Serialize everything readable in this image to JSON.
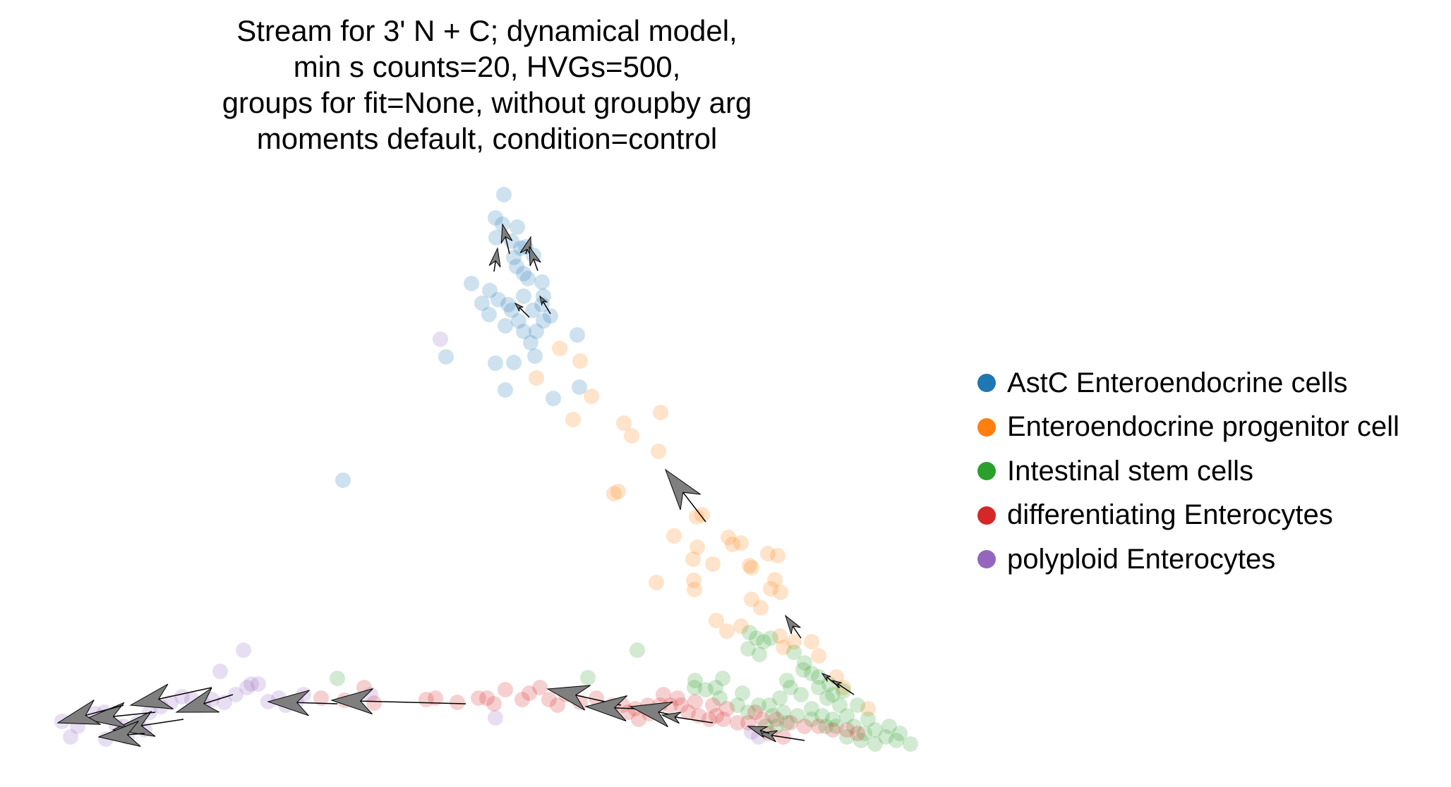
{
  "chart_data": {
    "type": "scatter",
    "title_lines": [
      "Stream for 3' N + C; dynamical model,",
      "min s counts=20, HVGs=500,",
      "groups for fit=None, without groupby arg",
      "moments default, condition=control"
    ],
    "xlabel": "",
    "ylabel": "",
    "axes_visible": false,
    "grid": false,
    "legend_position": "right",
    "series": [
      {
        "name": "AstC Enteroendocrine cells",
        "color": "#1f77b4",
        "points": [
          [
            714,
            276
          ],
          [
            702,
            309
          ],
          [
            712,
            318
          ],
          [
            733,
            322
          ],
          [
            703,
            337
          ],
          [
            725,
            342
          ],
          [
            738,
            352
          ],
          [
            756,
            362
          ],
          [
            668,
            402
          ],
          [
            694,
            412
          ],
          [
            706,
            425
          ],
          [
            683,
            430
          ],
          [
            720,
            432
          ],
          [
            693,
            446
          ],
          [
            716,
            462
          ],
          [
            742,
            470
          ],
          [
            768,
            432
          ],
          [
            752,
            486
          ],
          [
            702,
            515
          ],
          [
            728,
            514
          ],
          [
            758,
            505
          ],
          [
            818,
            475
          ],
          [
            784,
            565
          ],
          [
            716,
            553
          ],
          [
            821,
            549
          ],
          [
            486,
            681
          ],
          [
            632,
            506
          ],
          [
            732,
            378
          ],
          [
            748,
            395
          ],
          [
            742,
            420
          ],
          [
            755,
            440
          ],
          [
            770,
            455
          ],
          [
            760,
            470
          ],
          [
            735,
            455
          ],
          [
            725,
            440
          ],
          [
            745,
            350
          ],
          [
            728,
            365
          ],
          [
            742,
            388
          ],
          [
            770,
            420
          ],
          [
            780,
            448
          ],
          [
            768,
            400
          ]
        ]
      },
      {
        "name": "Enteroendocrine progenitor cell",
        "color": "#ff7f0e",
        "points": [
          [
            793,
            494
          ],
          [
            822,
            512
          ],
          [
            760,
            536
          ],
          [
            838,
            562
          ],
          [
            936,
            585
          ],
          [
            884,
            600
          ],
          [
            812,
            595
          ],
          [
            895,
            618
          ],
          [
            933,
            640
          ],
          [
            870,
            700
          ],
          [
            876,
            697
          ],
          [
            995,
            730
          ],
          [
            987,
            733
          ],
          [
            955,
            760
          ],
          [
            1032,
            762
          ],
          [
            1038,
            772
          ],
          [
            1050,
            770
          ],
          [
            988,
            776
          ],
          [
            982,
            793
          ],
          [
            1010,
            800
          ],
          [
            1065,
            805
          ],
          [
            1088,
            785
          ],
          [
            1102,
            788
          ],
          [
            1062,
            802
          ],
          [
            1098,
            822
          ],
          [
            930,
            826
          ],
          [
            983,
            823
          ],
          [
            1106,
            840
          ],
          [
            1092,
            835
          ],
          [
            984,
            836
          ],
          [
            1065,
            850
          ],
          [
            1078,
            862
          ],
          [
            1015,
            880
          ],
          [
            1050,
            888
          ],
          [
            1030,
            895
          ],
          [
            1105,
            902
          ],
          [
            1110,
            918
          ],
          [
            1125,
            910
          ],
          [
            1150,
            910
          ],
          [
            1160,
            930
          ],
          [
            1185,
            960
          ],
          [
            1195,
            975
          ],
          [
            1230,
            1005
          ]
        ]
      },
      {
        "name": "Intestinal stem cells",
        "color": "#2ca02c",
        "points": [
          [
            903,
            922
          ],
          [
            1062,
            897
          ],
          [
            1072,
            905
          ],
          [
            1082,
            910
          ],
          [
            1092,
            905
          ],
          [
            1060,
            920
          ],
          [
            1076,
            928
          ],
          [
            985,
            965
          ],
          [
            1024,
            962
          ],
          [
            1014,
            975
          ],
          [
            984,
            975
          ],
          [
            1052,
            983
          ],
          [
            1115,
            965
          ],
          [
            1120,
            975
          ],
          [
            1138,
            950
          ],
          [
            1150,
            955
          ],
          [
            1160,
            975
          ],
          [
            1172,
            990
          ],
          [
            1180,
            985
          ],
          [
            1190,
            1000
          ],
          [
            1090,
            1000
          ],
          [
            1105,
            990
          ],
          [
            1135,
            985
          ],
          [
            1150,
            1005
          ],
          [
            1165,
            1015
          ],
          [
            1180,
            1020
          ],
          [
            1200,
            1015
          ],
          [
            1210,
            1030
          ],
          [
            1225,
            1040
          ],
          [
            1240,
            1035
          ],
          [
            1255,
            1045
          ],
          [
            1270,
            1050
          ],
          [
            1240,
            1055
          ],
          [
            1220,
            1050
          ],
          [
            1200,
            1045
          ],
          [
            1185,
            1030
          ],
          [
            1170,
            1030
          ],
          [
            1150,
            1020
          ],
          [
            1130,
            1015
          ],
          [
            1110,
            1010
          ],
          [
            1095,
            1015
          ],
          [
            1075,
            1000
          ],
          [
            1060,
            1010
          ],
          [
            1045,
            1000
          ],
          [
            833,
            961
          ],
          [
            478,
            962
          ],
          [
            1000,
            978
          ],
          [
            1020,
            990
          ],
          [
            1290,
            1055
          ],
          [
            1275,
            1040
          ],
          [
            1260,
            1030
          ],
          [
            1230,
            1020
          ],
          [
            1215,
            1000
          ],
          [
            1195,
            980
          ],
          [
            1175,
            970
          ],
          [
            1160,
            960
          ],
          [
            1140,
            940
          ],
          [
            1125,
            925
          ],
          [
            1115,
            1025
          ],
          [
            1100,
            1030
          ],
          [
            1085,
            1030
          ]
        ]
      },
      {
        "name": "differentiating Enterocytes",
        "color": "#d62728",
        "points": [
          [
            516,
            975
          ],
          [
            488,
            993
          ],
          [
            455,
            990
          ],
          [
            530,
            997
          ],
          [
            604,
            992
          ],
          [
            617,
            990
          ],
          [
            648,
            996
          ],
          [
            678,
            990
          ],
          [
            690,
            990
          ],
          [
            700,
            998
          ],
          [
            716,
            978
          ],
          [
            740,
            992
          ],
          [
            750,
            983
          ],
          [
            765,
            975
          ],
          [
            778,
            992
          ],
          [
            790,
            1000
          ],
          [
            802,
            985
          ],
          [
            822,
            996
          ],
          [
            845,
            990
          ],
          [
            868,
            1000
          ],
          [
            882,
            1000
          ],
          [
            900,
            1005
          ],
          [
            918,
            1000
          ],
          [
            935,
            1000
          ],
          [
            950,
            1000
          ],
          [
            965,
            1000
          ],
          [
            975,
            1010
          ],
          [
            990,
            1015
          ],
          [
            1005,
            1020
          ],
          [
            1015,
            1015
          ],
          [
            1025,
            1020
          ],
          [
            1045,
            1025
          ],
          [
            1060,
            1025
          ],
          [
            1080,
            1020
          ],
          [
            1100,
            1020
          ],
          [
            1120,
            1025
          ],
          [
            1140,
            1030
          ],
          [
            1160,
            1030
          ],
          [
            1180,
            1035
          ],
          [
            1200,
            1035
          ],
          [
            1215,
            1040
          ],
          [
            1070,
            1010
          ],
          [
            1030,
            1005
          ],
          [
            1010,
            1000
          ],
          [
            985,
            995
          ],
          [
            960,
            990
          ],
          [
            940,
            985
          ],
          [
            920,
            1012
          ],
          [
            905,
            1020
          ],
          [
            890,
            1010
          ],
          [
            1090,
            1040
          ],
          [
            1110,
            1045
          ]
        ]
      },
      {
        "name": "polyploid Enterocytes",
        "color": "#9467bd",
        "points": [
          [
            624,
            481
          ],
          [
            345,
            922
          ],
          [
            312,
            952
          ],
          [
            356,
            970
          ],
          [
            88,
            1023
          ],
          [
            100,
            1045
          ],
          [
            135,
            1012
          ],
          [
            148,
            1010
          ],
          [
            165,
            1030
          ],
          [
            180,
            1045
          ],
          [
            195,
            1025
          ],
          [
            212,
            1010
          ],
          [
            228,
            1002
          ],
          [
            242,
            996
          ],
          [
            258,
            988
          ],
          [
            272,
            992
          ],
          [
            288,
            998
          ],
          [
            300,
            992
          ],
          [
            318,
            996
          ],
          [
            334,
            985
          ],
          [
            350,
            975
          ],
          [
            366,
            970
          ],
          [
            380,
            995
          ],
          [
            395,
            990
          ],
          [
            405,
            1000
          ],
          [
            420,
            995
          ],
          [
            430,
            985
          ],
          [
            110,
            1030
          ],
          [
            150,
            1048
          ],
          [
            175,
            1030
          ],
          [
            205,
            1035
          ],
          [
            525,
            985
          ],
          [
            702,
            1018
          ],
          [
            1065,
            1038
          ],
          [
            1075,
            1045
          ]
        ]
      }
    ],
    "arrows": [
      {
        "from": [
          1000,
          740
        ],
        "to": [
          943,
          666
        ],
        "size": "large"
      },
      {
        "from": [
          478,
          998
        ],
        "to": [
          380,
          995
        ],
        "size": "large"
      },
      {
        "from": [
          660,
          998
        ],
        "to": [
          470,
          993
        ],
        "size": "large"
      },
      {
        "from": [
          300,
          975
        ],
        "to": [
          185,
          1000
        ],
        "size": "large"
      },
      {
        "from": [
          330,
          985
        ],
        "to": [
          250,
          1010
        ],
        "size": "large"
      },
      {
        "from": [
          260,
          1020
        ],
        "to": [
          160,
          1035
        ],
        "size": "large"
      },
      {
        "from": [
          220,
          1010
        ],
        "to": [
          120,
          1020
        ],
        "size": "large"
      },
      {
        "from": [
          175,
          1000
        ],
        "to": [
          82,
          1025
        ],
        "size": "large"
      },
      {
        "from": [
          205,
          1040
        ],
        "to": [
          140,
          1045
        ],
        "size": "large"
      },
      {
        "from": [
          880,
          1000
        ],
        "to": [
          776,
          977
        ],
        "size": "large"
      },
      {
        "from": [
          900,
          1005
        ],
        "to": [
          830,
          1002
        ],
        "size": "large"
      },
      {
        "from": [
          960,
          1015
        ],
        "to": [
          893,
          1002
        ],
        "size": "large"
      },
      {
        "from": [
          1010,
          1025
        ],
        "to": [
          938,
          1014
        ],
        "size": "medium"
      },
      {
        "from": [
          1140,
          1050
        ],
        "to": [
          1075,
          1040
        ],
        "size": "medium"
      },
      {
        "from": [
          1090,
          1040
        ],
        "to": [
          1060,
          1030
        ],
        "size": "medium"
      },
      {
        "from": [
          1135,
          905
        ],
        "to": [
          1113,
          873
        ],
        "size": "medium"
      },
      {
        "from": [
          722,
          360
        ],
        "to": [
          712,
          318
        ],
        "size": "medium"
      },
      {
        "from": [
          745,
          360
        ],
        "to": [
          752,
          336
        ],
        "size": "medium"
      },
      {
        "from": [
          700,
          385
        ],
        "to": [
          705,
          352
        ],
        "size": "medium"
      },
      {
        "from": [
          762,
          384
        ],
        "to": [
          750,
          350
        ],
        "size": "medium"
      },
      {
        "from": [
          780,
          445
        ],
        "to": [
          765,
          420
        ],
        "size": "small"
      },
      {
        "from": [
          750,
          450
        ],
        "to": [
          730,
          430
        ],
        "size": "small"
      },
      {
        "from": [
          1210,
          985
        ],
        "to": [
          1180,
          965
        ],
        "size": "small"
      },
      {
        "from": [
          1190,
          975
        ],
        "to": [
          1165,
          955
        ],
        "size": "small"
      }
    ]
  }
}
